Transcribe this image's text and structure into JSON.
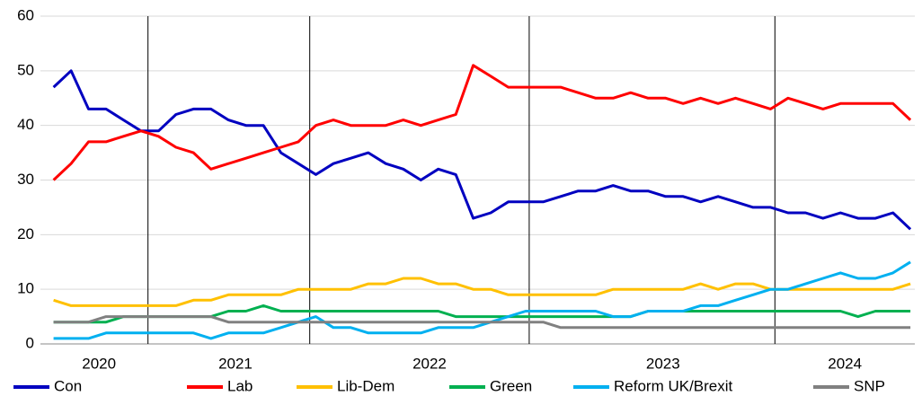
{
  "chart_data": {
    "type": "line",
    "x": [
      1.5,
      3.5,
      5.5,
      7.5,
      9.5,
      11.5,
      13.5,
      15.5,
      17.5,
      19.5,
      21.5,
      23.5,
      25.5,
      27.5,
      29.5,
      31.5,
      33.5,
      35.5,
      37.5,
      39.5,
      41.5,
      43.5,
      45.5,
      47.5,
      49.5,
      51.5,
      53.5,
      55.5,
      57.5,
      59.5,
      61.5,
      63.5,
      65.5,
      67.5,
      69.5,
      71.5,
      73.5,
      75.5,
      77.5,
      79.5,
      81.5,
      83.5,
      85.5,
      87.5,
      89.5,
      91.5,
      93.5,
      95.5,
      97.5,
      99.5
    ],
    "xlim": [
      0,
      100
    ],
    "xticks": [
      {
        "value": 6.7,
        "label": "2020"
      },
      {
        "value": 22.3,
        "label": "2021"
      },
      {
        "value": 44.5,
        "label": "2022"
      },
      {
        "value": 71.2,
        "label": "2023"
      },
      {
        "value": 92.0,
        "label": "2024"
      }
    ],
    "year_boundaries": [
      12.3,
      30.8,
      55.9,
      84.0
    ],
    "ylim": [
      0,
      60
    ],
    "yticks": [
      0,
      10,
      20,
      30,
      40,
      50,
      60
    ],
    "grid": true,
    "series": [
      {
        "name": "Con",
        "color": "#0000c0",
        "values": [
          47,
          50,
          43,
          43,
          41,
          39,
          39,
          42,
          43,
          43,
          41,
          40,
          40,
          35,
          33,
          31,
          33,
          34,
          35,
          33,
          32,
          30,
          32,
          31,
          23,
          24,
          26,
          26,
          26,
          27,
          28,
          28,
          29,
          28,
          28,
          27,
          27,
          26,
          27,
          26,
          25,
          25,
          24,
          24,
          23,
          24,
          23,
          23,
          24,
          21
        ]
      },
      {
        "name": "Lab",
        "color": "#ff0000",
        "values": [
          30,
          33,
          37,
          37,
          38,
          39,
          38,
          36,
          35,
          32,
          33,
          34,
          35,
          36,
          37,
          40,
          41,
          40,
          40,
          40,
          41,
          40,
          41,
          42,
          51,
          49,
          47,
          47,
          47,
          47,
          46,
          45,
          45,
          46,
          45,
          45,
          44,
          45,
          44,
          45,
          44,
          43,
          45,
          44,
          43,
          44,
          44,
          44,
          44,
          41
        ]
      },
      {
        "name": "Lib-Dem",
        "color": "#ffc000",
        "values": [
          8,
          7,
          7,
          7,
          7,
          7,
          7,
          7,
          8,
          8,
          9,
          9,
          9,
          9,
          10,
          10,
          10,
          10,
          11,
          11,
          12,
          12,
          11,
          11,
          10,
          10,
          9,
          9,
          9,
          9,
          9,
          9,
          10,
          10,
          10,
          10,
          10,
          11,
          10,
          11,
          11,
          10,
          10,
          10,
          10,
          10,
          10,
          10,
          10,
          11
        ]
      },
      {
        "name": "Green",
        "color": "#00b050",
        "values": [
          4,
          4,
          4,
          4,
          5,
          5,
          5,
          5,
          5,
          5,
          6,
          6,
          7,
          6,
          6,
          6,
          6,
          6,
          6,
          6,
          6,
          6,
          6,
          5,
          5,
          5,
          5,
          5,
          5,
          5,
          5,
          5,
          5,
          5,
          6,
          6,
          6,
          6,
          6,
          6,
          6,
          6,
          6,
          6,
          6,
          6,
          5,
          6,
          6,
          6
        ]
      },
      {
        "name": "Reform UK/Brexit",
        "color": "#00b0f0",
        "values": [
          1,
          1,
          1,
          2,
          2,
          2,
          2,
          2,
          2,
          1,
          2,
          2,
          2,
          3,
          4,
          5,
          3,
          3,
          2,
          2,
          2,
          2,
          3,
          3,
          3,
          4,
          5,
          6,
          6,
          6,
          6,
          6,
          5,
          5,
          6,
          6,
          6,
          7,
          7,
          8,
          9,
          10,
          10,
          11,
          12,
          13,
          12,
          12,
          13,
          15
        ]
      },
      {
        "name": "SNP",
        "color": "#808080",
        "values": [
          4,
          4,
          4,
          5,
          5,
          5,
          5,
          5,
          5,
          5,
          4,
          4,
          4,
          4,
          4,
          4,
          4,
          4,
          4,
          4,
          4,
          4,
          4,
          4,
          4,
          4,
          4,
          4,
          4,
          3,
          3,
          3,
          3,
          3,
          3,
          3,
          3,
          3,
          3,
          3,
          3,
          3,
          3,
          3,
          3,
          3,
          3,
          3,
          3,
          3
        ]
      }
    ]
  }
}
